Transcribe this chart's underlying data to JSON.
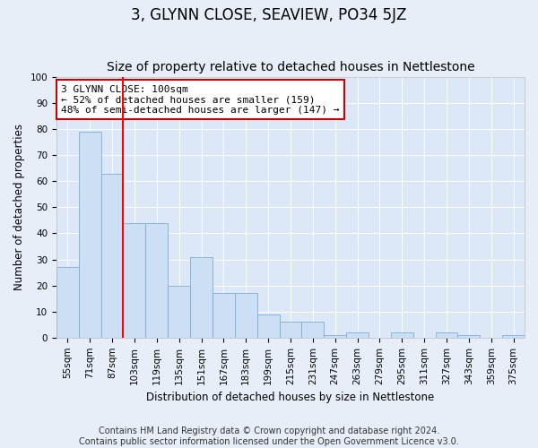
{
  "title": "3, GLYNN CLOSE, SEAVIEW, PO34 5JZ",
  "subtitle": "Size of property relative to detached houses in Nettlestone",
  "xlabel": "Distribution of detached houses by size in Nettlestone",
  "ylabel": "Number of detached properties",
  "footnote1": "Contains HM Land Registry data © Crown copyright and database right 2024.",
  "footnote2": "Contains public sector information licensed under the Open Government Licence v3.0.",
  "categories": [
    "55sqm",
    "71sqm",
    "87sqm",
    "103sqm",
    "119sqm",
    "135sqm",
    "151sqm",
    "167sqm",
    "183sqm",
    "199sqm",
    "215sqm",
    "231sqm",
    "247sqm",
    "263sqm",
    "279sqm",
    "295sqm",
    "311sqm",
    "327sqm",
    "343sqm",
    "359sqm",
    "375sqm"
  ],
  "values": [
    27,
    79,
    63,
    44,
    44,
    20,
    31,
    17,
    17,
    9,
    6,
    6,
    1,
    2,
    0,
    2,
    0,
    2,
    1,
    0,
    1
  ],
  "bar_color": "#ccdff5",
  "bar_edge_color": "#7aafd4",
  "red_line_index": 2,
  "annotation_line1": "3 GLYNN CLOSE: 100sqm",
  "annotation_line2": "← 52% of detached houses are smaller (159)",
  "annotation_line3": "48% of semi-detached houses are larger (147) →",
  "annotation_box_edge": "#cc0000",
  "ylim": [
    0,
    100
  ],
  "background_color": "#e8eef8",
  "plot_bg_color": "#dce8f8",
  "grid_color": "#ffffff",
  "title_fontsize": 12,
  "subtitle_fontsize": 10,
  "axis_label_fontsize": 8.5,
  "tick_fontsize": 7.5,
  "annotation_fontsize": 8,
  "footnote_fontsize": 7
}
